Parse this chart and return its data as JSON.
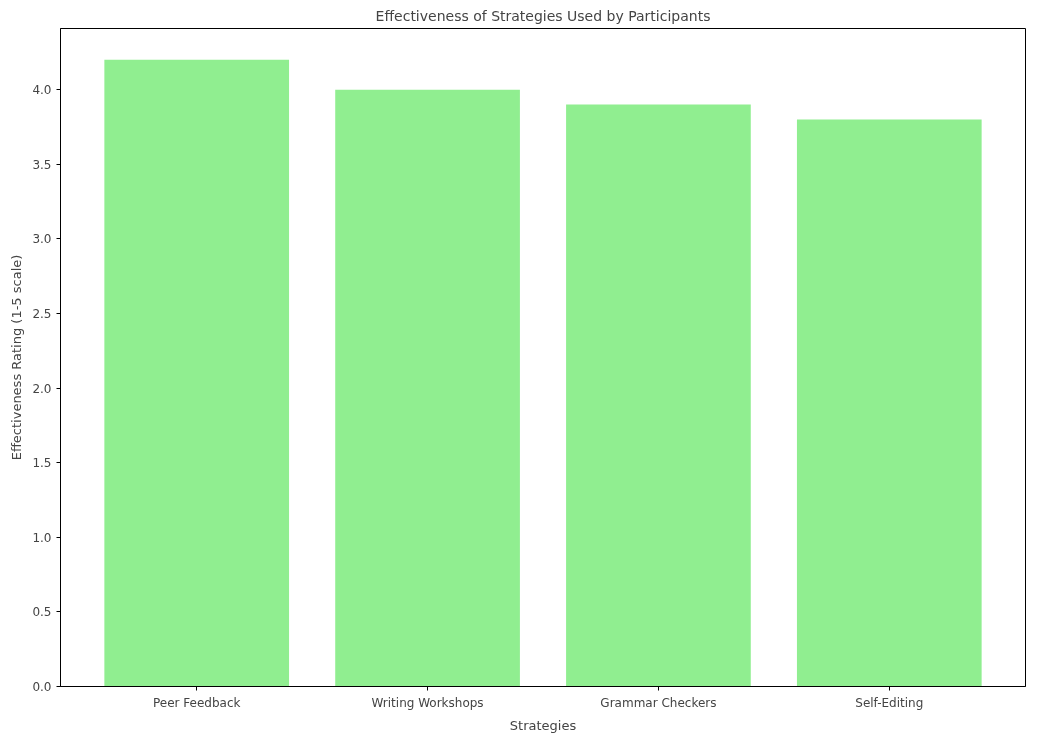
{
  "chart_data": {
    "type": "bar",
    "title": "Effectiveness of Strategies Used by Participants",
    "xlabel": "Strategies",
    "ylabel": "Effectiveness Rating (1-5 scale)",
    "categories": [
      "Peer Feedback",
      "Writing Workshops",
      "Grammar Checkers",
      "Self-Editing"
    ],
    "values": [
      4.2,
      4.0,
      3.9,
      3.8
    ],
    "color": "#90ee90",
    "ylim": [
      0,
      4.41
    ],
    "yticks": [
      {
        "value": 0,
        "label": "0.0"
      },
      0.5,
      {
        "value": 1,
        "label": "1.0"
      },
      1.5,
      {
        "value": 2,
        "label": "2.0"
      },
      2.5,
      {
        "value": 3,
        "label": "3.0"
      },
      3.5,
      {
        "value": 4,
        "label": "4.0"
      }
    ],
    "grid": false
  }
}
